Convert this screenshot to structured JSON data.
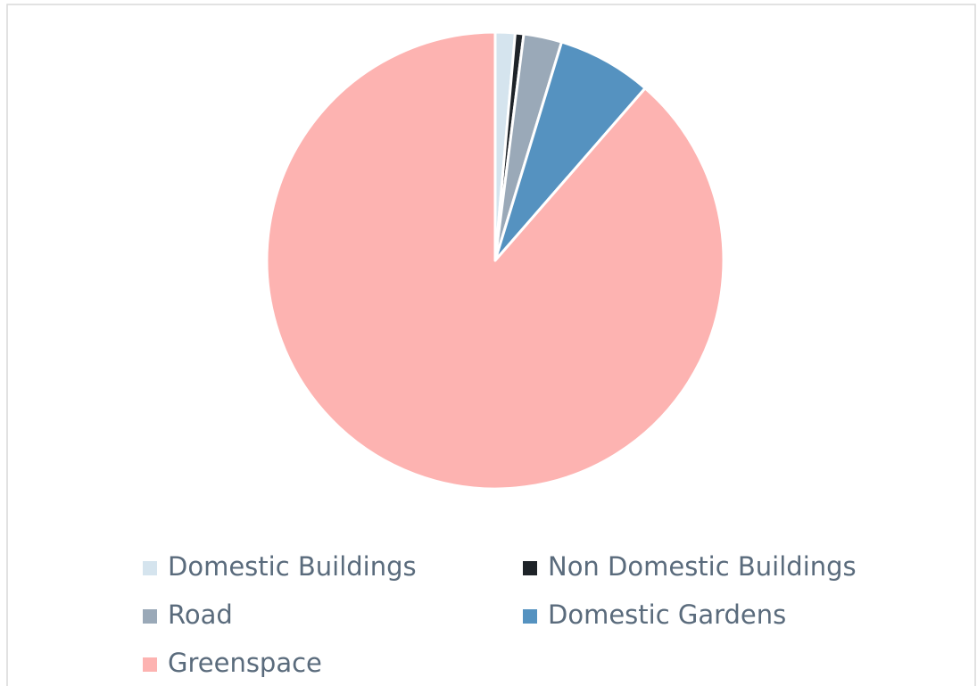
{
  "chart_data": {
    "type": "pie",
    "categories": [
      "Domestic Buildings",
      "Non Domestic Buildings",
      "Road",
      "Domestic Gardens",
      "Greenspace"
    ],
    "values": [
      1.4,
      0.6,
      2.7,
      6.7,
      88.6
    ],
    "colors": [
      "#d5e4ee",
      "#1e2328",
      "#9aa9b8",
      "#5592c0",
      "#fdb3b1"
    ],
    "legend": "bottom"
  }
}
